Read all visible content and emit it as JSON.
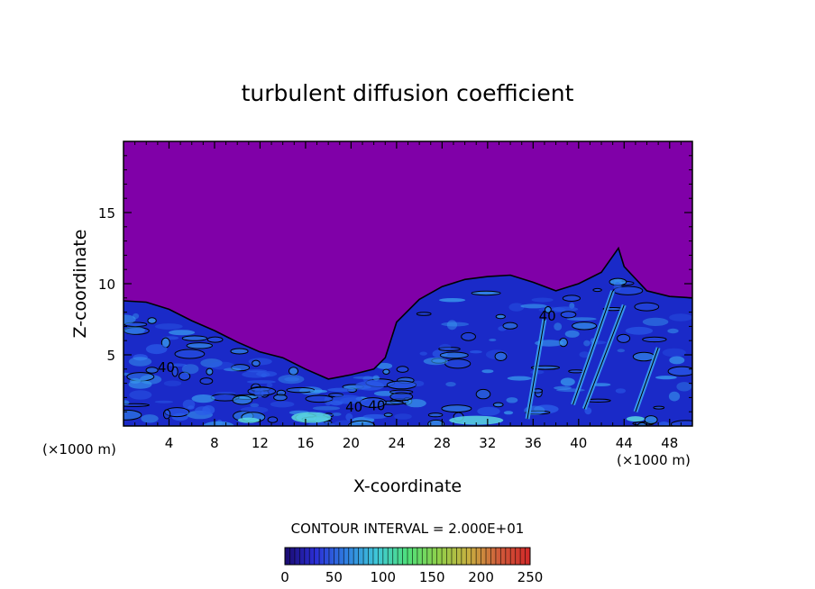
{
  "chart_data": {
    "type": "heatmap",
    "title": "turbulent diffusion coefficient",
    "xlabel": "X-coordinate",
    "ylabel": "Z-coordinate",
    "x_units": "(×1000 m)",
    "z_units": "(×1000 m)",
    "xlim": [
      0,
      50
    ],
    "ylim": [
      0,
      20
    ],
    "x_ticks": [
      "4",
      "8",
      "12",
      "16",
      "20",
      "24",
      "28",
      "32",
      "36",
      "40",
      "44",
      "48"
    ],
    "y_ticks": [
      "5",
      "10",
      "15"
    ],
    "contour_interval_text": "CONTOUR INTERVAL = 2.000E+01",
    "contour_labels": [
      "40",
      "40",
      "40",
      "40"
    ],
    "colorbar": {
      "range": [
        0,
        250
      ],
      "tick_labels": [
        "0",
        "50",
        "100",
        "150",
        "200",
        "250"
      ],
      "colors": [
        "#1a0a6e",
        "#2b2fd6",
        "#2f7fe0",
        "#3fc8d8",
        "#4fe07a",
        "#8fd04a",
        "#c8b040",
        "#d05a3a",
        "#d02828"
      ]
    },
    "background_color": "#8000a8",
    "field_colors": [
      "#1a2ac8",
      "#2a5ce8",
      "#3aa0f0",
      "#5ad8e0"
    ],
    "boundary_top_km": [
      [
        0,
        8.8
      ],
      [
        2,
        8.7
      ],
      [
        4,
        8.2
      ],
      [
        6,
        7.4
      ],
      [
        8,
        6.7
      ],
      [
        10,
        5.9
      ],
      [
        12,
        5.2
      ],
      [
        14,
        4.8
      ],
      [
        16,
        4.0
      ],
      [
        18,
        3.3
      ],
      [
        20,
        3.6
      ],
      [
        22,
        4.0
      ],
      [
        23,
        4.8
      ],
      [
        24,
        7.3
      ],
      [
        26,
        8.9
      ],
      [
        28,
        9.8
      ],
      [
        30,
        10.3
      ],
      [
        32,
        10.5
      ],
      [
        34,
        10.6
      ],
      [
        36,
        10.1
      ],
      [
        38,
        9.5
      ],
      [
        40,
        10.0
      ],
      [
        42,
        10.8
      ],
      [
        43.5,
        12.5
      ],
      [
        44,
        11.2
      ],
      [
        46,
        9.5
      ],
      [
        48,
        9.1
      ],
      [
        50,
        9.0
      ]
    ]
  }
}
